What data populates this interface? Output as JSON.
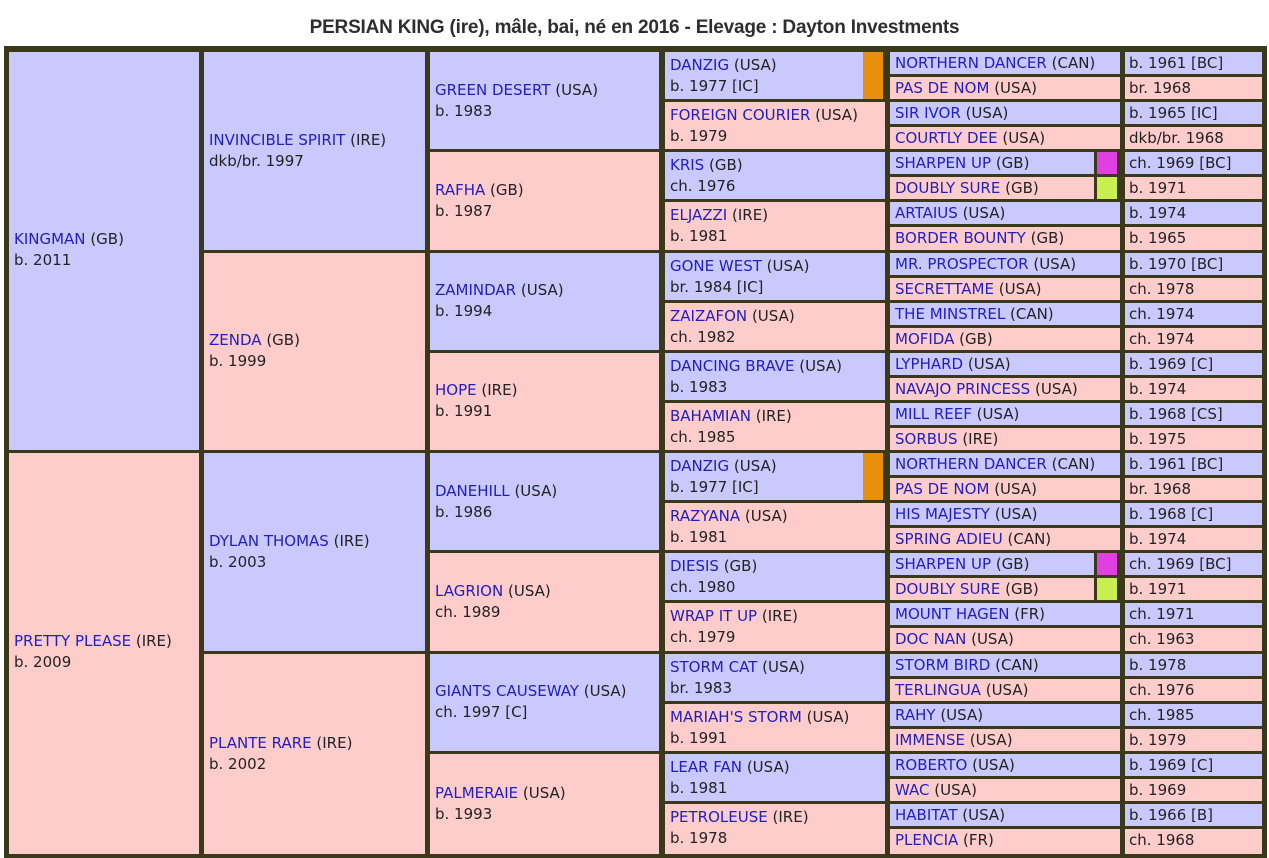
{
  "title": "PERSIAN KING (ire), mâle, bai, né en 2016 - Elevage : Dayton Investments",
  "colors": {
    "male": "#c9c9ff",
    "female": "#ffcccc",
    "link": "#2020c0",
    "frame": "#3a3a1a",
    "danzig_marker": "#e8900c",
    "sharpen_marker": "#e040e0",
    "doubly_marker": "#c8ef50"
  },
  "pedigree": {
    "g1": [
      {
        "name": "KINGMAN",
        "country": "(GB)",
        "info": "b. 2011",
        "sex": "m"
      },
      {
        "name": "PRETTY PLEASE",
        "country": "(IRE)",
        "info": "b. 2009",
        "sex": "f"
      }
    ],
    "g2": [
      {
        "name": "INVINCIBLE SPIRIT",
        "country": "(IRE)",
        "info": "dkb/br. 1997",
        "sex": "m"
      },
      {
        "name": "ZENDA",
        "country": "(GB)",
        "info": "b. 1999",
        "sex": "f"
      },
      {
        "name": "DYLAN THOMAS",
        "country": "(IRE)",
        "info": "b. 2003",
        "sex": "m"
      },
      {
        "name": "PLANTE RARE",
        "country": "(IRE)",
        "info": "b. 2002",
        "sex": "f"
      }
    ],
    "g3": [
      {
        "name": "GREEN DESERT",
        "country": "(USA)",
        "info": "b. 1983",
        "sex": "m"
      },
      {
        "name": "RAFHA",
        "country": "(GB)",
        "info": "b. 1987",
        "sex": "f"
      },
      {
        "name": "ZAMINDAR",
        "country": "(USA)",
        "info": "b. 1994",
        "sex": "m"
      },
      {
        "name": "HOPE",
        "country": "(IRE)",
        "info": "b. 1991",
        "sex": "f"
      },
      {
        "name": "DANEHILL",
        "country": "(USA)",
        "info": "b. 1986",
        "sex": "m"
      },
      {
        "name": "LAGRION",
        "country": "(USA)",
        "info": "ch. 1989",
        "sex": "f"
      },
      {
        "name": "GIANTS CAUSEWAY",
        "country": "(USA)",
        "info": "ch. 1997 [C]",
        "sex": "m"
      },
      {
        "name": "PALMERAIE",
        "country": "(USA)",
        "info": "b. 1993",
        "sex": "f"
      }
    ],
    "g4": [
      {
        "name": "DANZIG",
        "country": "(USA)",
        "info": "b. 1977 [IC]",
        "sex": "m",
        "marker": "danzig"
      },
      {
        "name": "FOREIGN COURIER",
        "country": "(USA)",
        "info": "b. 1979",
        "sex": "f"
      },
      {
        "name": "KRIS",
        "country": "(GB)",
        "info": "ch. 1976",
        "sex": "m"
      },
      {
        "name": "ELJAZZI",
        "country": "(IRE)",
        "info": "b. 1981",
        "sex": "f"
      },
      {
        "name": "GONE WEST",
        "country": "(USA)",
        "info": "br. 1984 [IC]",
        "sex": "m"
      },
      {
        "name": "ZAIZAFON",
        "country": "(USA)",
        "info": "ch. 1982",
        "sex": "f"
      },
      {
        "name": "DANCING BRAVE",
        "country": "(USA)",
        "info": "b. 1983",
        "sex": "m"
      },
      {
        "name": "BAHAMIAN",
        "country": "(IRE)",
        "info": "ch. 1985",
        "sex": "f"
      },
      {
        "name": "DANZIG",
        "country": "(USA)",
        "info": "b. 1977 [IC]",
        "sex": "m",
        "marker": "danzig"
      },
      {
        "name": "RAZYANA",
        "country": "(USA)",
        "info": "b. 1981",
        "sex": "f"
      },
      {
        "name": "DIESIS",
        "country": "(GB)",
        "info": "ch. 1980",
        "sex": "m"
      },
      {
        "name": "WRAP IT UP",
        "country": "(IRE)",
        "info": "ch. 1979",
        "sex": "f"
      },
      {
        "name": "STORM CAT",
        "country": "(USA)",
        "info": "br. 1983",
        "sex": "m"
      },
      {
        "name": "MARIAH'S STORM",
        "country": "(USA)",
        "info": "b. 1991",
        "sex": "f"
      },
      {
        "name": "LEAR FAN",
        "country": "(USA)",
        "info": "b. 1981",
        "sex": "m"
      },
      {
        "name": "PETROLEUSE",
        "country": "(IRE)",
        "info": "b. 1978",
        "sex": "f"
      }
    ],
    "g5": [
      {
        "name": "NORTHERN DANCER",
        "country": "(CAN)",
        "info": "b. 1961 [BC]",
        "sex": "m"
      },
      {
        "name": "PAS DE NOM",
        "country": "(USA)",
        "info": "br. 1968",
        "sex": "f"
      },
      {
        "name": "SIR IVOR",
        "country": "(USA)",
        "info": "b. 1965 [IC]",
        "sex": "m"
      },
      {
        "name": "COURTLY DEE",
        "country": "(USA)",
        "info": "dkb/br. 1968",
        "sex": "f"
      },
      {
        "name": "SHARPEN UP",
        "country": "(GB)",
        "info": "ch. 1969 [BC]",
        "sex": "m",
        "marker": "sharpen"
      },
      {
        "name": "DOUBLY SURE",
        "country": "(GB)",
        "info": "b. 1971",
        "sex": "f",
        "marker": "doubly"
      },
      {
        "name": "ARTAIUS",
        "country": "(USA)",
        "info": "b. 1974",
        "sex": "m"
      },
      {
        "name": "BORDER BOUNTY",
        "country": "(GB)",
        "info": "b. 1965",
        "sex": "f"
      },
      {
        "name": "MR. PROSPECTOR",
        "country": "(USA)",
        "info": "b. 1970 [BC]",
        "sex": "m"
      },
      {
        "name": "SECRETTAME",
        "country": "(USA)",
        "info": "ch. 1978",
        "sex": "f"
      },
      {
        "name": "THE MINSTREL",
        "country": "(CAN)",
        "info": "ch. 1974",
        "sex": "m"
      },
      {
        "name": "MOFIDA",
        "country": "(GB)",
        "info": "ch. 1974",
        "sex": "f"
      },
      {
        "name": "LYPHARD",
        "country": "(USA)",
        "info": "b. 1969 [C]",
        "sex": "m"
      },
      {
        "name": "NAVAJO PRINCESS",
        "country": "(USA)",
        "info": "b. 1974",
        "sex": "f"
      },
      {
        "name": "MILL REEF",
        "country": "(USA)",
        "info": "b. 1968 [CS]",
        "sex": "m"
      },
      {
        "name": "SORBUS",
        "country": "(IRE)",
        "info": "b. 1975",
        "sex": "f"
      },
      {
        "name": "NORTHERN DANCER",
        "country": "(CAN)",
        "info": "b. 1961 [BC]",
        "sex": "m"
      },
      {
        "name": "PAS DE NOM",
        "country": "(USA)",
        "info": "br. 1968",
        "sex": "f"
      },
      {
        "name": "HIS MAJESTY",
        "country": "(USA)",
        "info": "b. 1968 [C]",
        "sex": "m"
      },
      {
        "name": "SPRING ADIEU",
        "country": "(CAN)",
        "info": "b. 1974",
        "sex": "f"
      },
      {
        "name": "SHARPEN UP",
        "country": "(GB)",
        "info": "ch. 1969 [BC]",
        "sex": "m",
        "marker": "sharpen"
      },
      {
        "name": "DOUBLY SURE",
        "country": "(GB)",
        "info": "b. 1971",
        "sex": "f",
        "marker": "doubly"
      },
      {
        "name": "MOUNT HAGEN",
        "country": "(FR)",
        "info": "ch. 1971",
        "sex": "m"
      },
      {
        "name": "DOC NAN",
        "country": "(USA)",
        "info": "ch. 1963",
        "sex": "f"
      },
      {
        "name": "STORM BIRD",
        "country": "(CAN)",
        "info": "b. 1978",
        "sex": "m"
      },
      {
        "name": "TERLINGUA",
        "country": "(USA)",
        "info": "ch. 1976",
        "sex": "f"
      },
      {
        "name": "RAHY",
        "country": "(USA)",
        "info": "ch. 1985",
        "sex": "m"
      },
      {
        "name": "IMMENSE",
        "country": "(USA)",
        "info": "b. 1979",
        "sex": "f"
      },
      {
        "name": "ROBERTO",
        "country": "(USA)",
        "info": "b. 1969 [C]",
        "sex": "m"
      },
      {
        "name": "WAC",
        "country": "(USA)",
        "info": "b. 1969",
        "sex": "f"
      },
      {
        "name": "HABITAT",
        "country": "(USA)",
        "info": "b. 1966 [B]",
        "sex": "m"
      },
      {
        "name": "PLENCIA",
        "country": "(FR)",
        "info": "ch. 1968",
        "sex": "f"
      }
    ]
  }
}
